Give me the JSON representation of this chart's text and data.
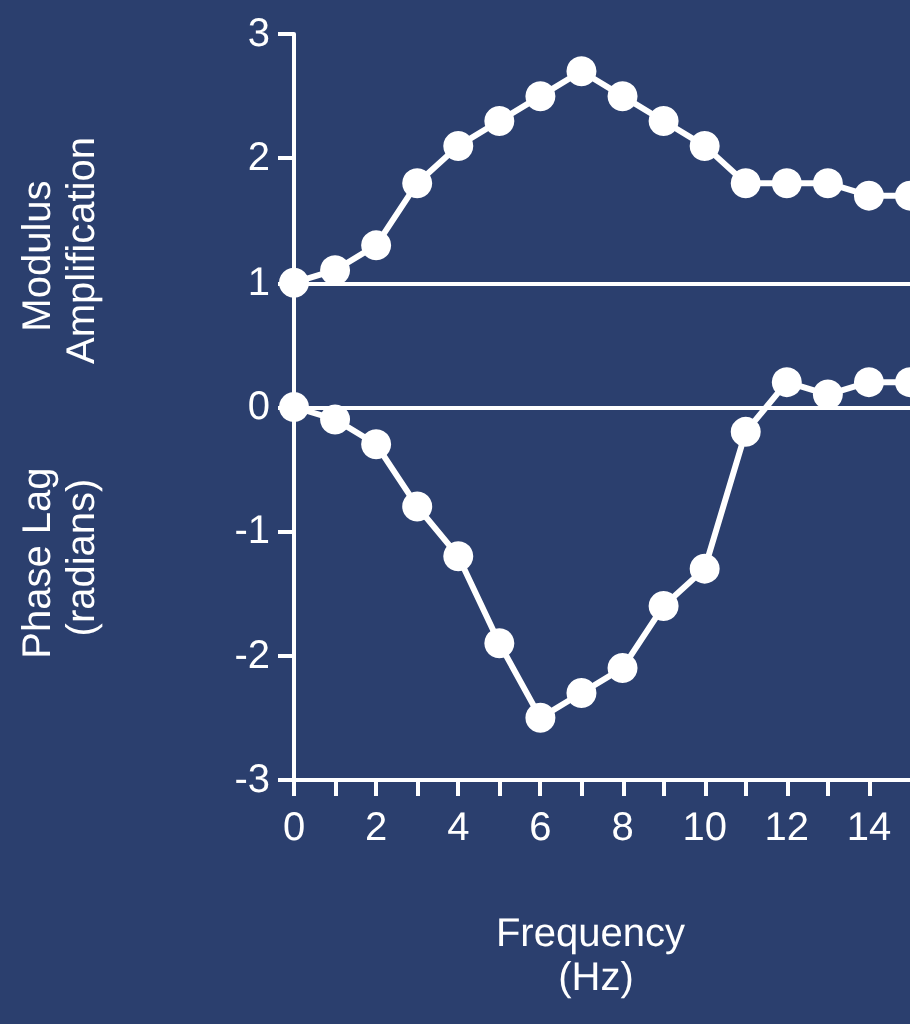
{
  "chart_data": {
    "type": "line",
    "xlabel": "Frequency (Hz)",
    "ylabel": "Modulus Amplification",
    "annotations": [
      "Phase Lag (radians)"
    ],
    "x": [
      0,
      1,
      2,
      3,
      4,
      5,
      6,
      7,
      8,
      9,
      10,
      11,
      12,
      13,
      14,
      15
    ],
    "series": [
      {
        "color": "#ffffff",
        "values": [
          1,
          1.1,
          1.3,
          1.8,
          2.1,
          2.3,
          2.5,
          2.7,
          2.5,
          2.3,
          2.1,
          1.8,
          1.8,
          1.8,
          1.7,
          1.7
        ]
      },
      {
        "color": "#ffffff",
        "values": [
          0,
          -0.1,
          -0.3,
          -0.8,
          -1.2,
          -1.9,
          -2.5,
          -2.3,
          -2.1,
          -1.6,
          -1.3,
          -0.2,
          0.2,
          0.1,
          0.2,
          0.2
        ]
      }
    ],
    "xlim": [
      0,
      15
    ],
    "xticks": [
      0,
      {
        "value": 1,
        "label": null
      },
      2,
      {
        "value": 3,
        "label": null
      },
      4,
      {
        "value": 5,
        "label": null
      },
      6,
      {
        "value": 7,
        "label": null
      },
      8,
      {
        "value": 9,
        "label": null
      },
      10,
      {
        "value": 11,
        "label": null
      },
      12,
      {
        "value": 13,
        "label": null
      },
      14
    ],
    "ylim": [
      -3,
      3
    ],
    "yticks": [
      -3,
      -2,
      -1,
      0,
      1,
      2,
      3
    ],
    "ref_lines": [
      {
        "axis": "y",
        "value": 1,
        "color": "#ffffff"
      },
      {
        "axis": "y",
        "value": 0,
        "color": "#ffffff"
      }
    ],
    "grid": false,
    "marker": "circle",
    "line_style": "solid"
  }
}
